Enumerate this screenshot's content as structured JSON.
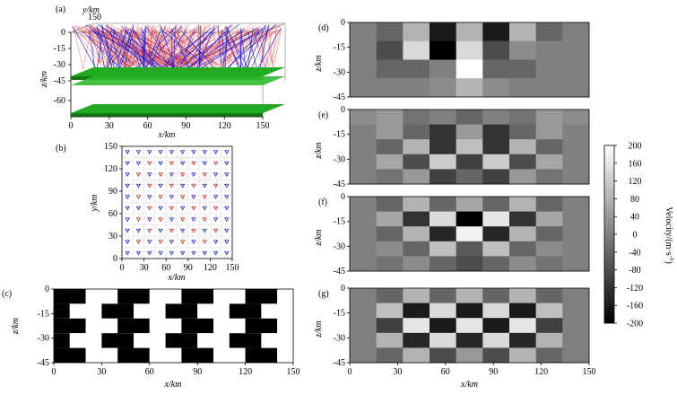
{
  "panels": {
    "a": {
      "label": "(a)",
      "xlabel": "x/km",
      "ylabel": "y/km",
      "zlabel": "z/km",
      "xticks": [
        "0",
        "30",
        "60",
        "90",
        "120",
        "150"
      ],
      "yticks": [
        "150"
      ],
      "zticks": [
        "0",
        "-15",
        "-30",
        "-45",
        "-60"
      ],
      "layer_color": "#22aa22",
      "ray_color_red": "#e02020",
      "ray_color_blue": "#2020d8"
    },
    "b": {
      "label": "(b)",
      "xlabel": "x/km",
      "ylabel": "y/km",
      "xticks": [
        "0",
        "30",
        "60",
        "90",
        "120",
        "150"
      ],
      "yticks": [
        "0",
        "30",
        "60",
        "90",
        "120",
        "150"
      ],
      "grid_count": 10,
      "marker_color_red": "#e02020",
      "marker_color_blue": "#2020d8"
    },
    "c": {
      "label": "(c)",
      "xlabel": "x/km",
      "ylabel": "z/km",
      "xticks": [
        "0",
        "30",
        "60",
        "90",
        "120",
        "150"
      ],
      "zticks": [
        "0",
        "-15",
        "-30",
        "-45"
      ]
    },
    "d": {
      "label": "(d)",
      "ylabel": "z/km",
      "zticks": [
        "0",
        "-15",
        "-30",
        "-45"
      ],
      "grid": [
        [
          0,
          -40,
          80,
          -160,
          80,
          -160,
          80,
          -40,
          0
        ],
        [
          0,
          -80,
          140,
          -200,
          140,
          -80,
          20,
          0,
          0
        ],
        [
          0,
          -40,
          -40,
          0,
          200,
          -40,
          -40,
          0,
          0
        ],
        [
          0,
          0,
          0,
          20,
          80,
          20,
          0,
          0,
          0
        ]
      ]
    },
    "e": {
      "label": "(e)",
      "ylabel": "z/km",
      "zticks": [
        "0",
        "-15",
        "-30",
        "-45"
      ],
      "grid": [
        [
          20,
          40,
          -20,
          0,
          -40,
          0,
          -20,
          40,
          20
        ],
        [
          0,
          40,
          -40,
          -120,
          40,
          -120,
          -40,
          40,
          0
        ],
        [
          0,
          -40,
          80,
          -120,
          100,
          -120,
          80,
          -40,
          0
        ],
        [
          0,
          60,
          -80,
          120,
          -100,
          120,
          -80,
          60,
          0
        ],
        [
          0,
          -20,
          40,
          -100,
          -40,
          -100,
          40,
          -20,
          0
        ]
      ]
    },
    "f": {
      "label": "(f)",
      "ylabel": "z/km",
      "zticks": [
        "0",
        "-15",
        "-30",
        "-45"
      ],
      "grid": [
        [
          0,
          -40,
          80,
          -40,
          60,
          -40,
          80,
          -40,
          0
        ],
        [
          0,
          60,
          -120,
          140,
          -200,
          160,
          -120,
          60,
          0
        ],
        [
          0,
          -40,
          80,
          -140,
          180,
          -140,
          80,
          -40,
          0
        ],
        [
          0,
          20,
          -40,
          100,
          -60,
          100,
          -40,
          20,
          0
        ],
        [
          0,
          -20,
          20,
          -40,
          -80,
          -40,
          20,
          -20,
          0
        ]
      ]
    },
    "g": {
      "label": "(g)",
      "xlabel": "x/km",
      "ylabel": "z/km",
      "xticks": [
        "0",
        "30",
        "60",
        "90",
        "120",
        "150"
      ],
      "zticks": [
        "0",
        "-15",
        "-30",
        "-45"
      ],
      "grid": [
        [
          0,
          -40,
          80,
          -40,
          80,
          -40,
          80,
          -40,
          0
        ],
        [
          0,
          100,
          -160,
          140,
          -160,
          140,
          -160,
          100,
          0
        ],
        [
          0,
          -100,
          160,
          -160,
          160,
          -160,
          160,
          -100,
          0
        ],
        [
          0,
          80,
          -140,
          140,
          -140,
          140,
          -140,
          80,
          0
        ],
        [
          0,
          -40,
          80,
          -80,
          40,
          -80,
          80,
          -40,
          0
        ]
      ]
    }
  },
  "colorbar": {
    "label": "Velocity/(m·s",
    "label_sup": "-1",
    "label_close": ")",
    "ticks": [
      "200",
      "160",
      "120",
      "80",
      "40",
      "0",
      "-40",
      "-80",
      "-120",
      "-160",
      "-200"
    ],
    "min": -200,
    "max": 200
  }
}
